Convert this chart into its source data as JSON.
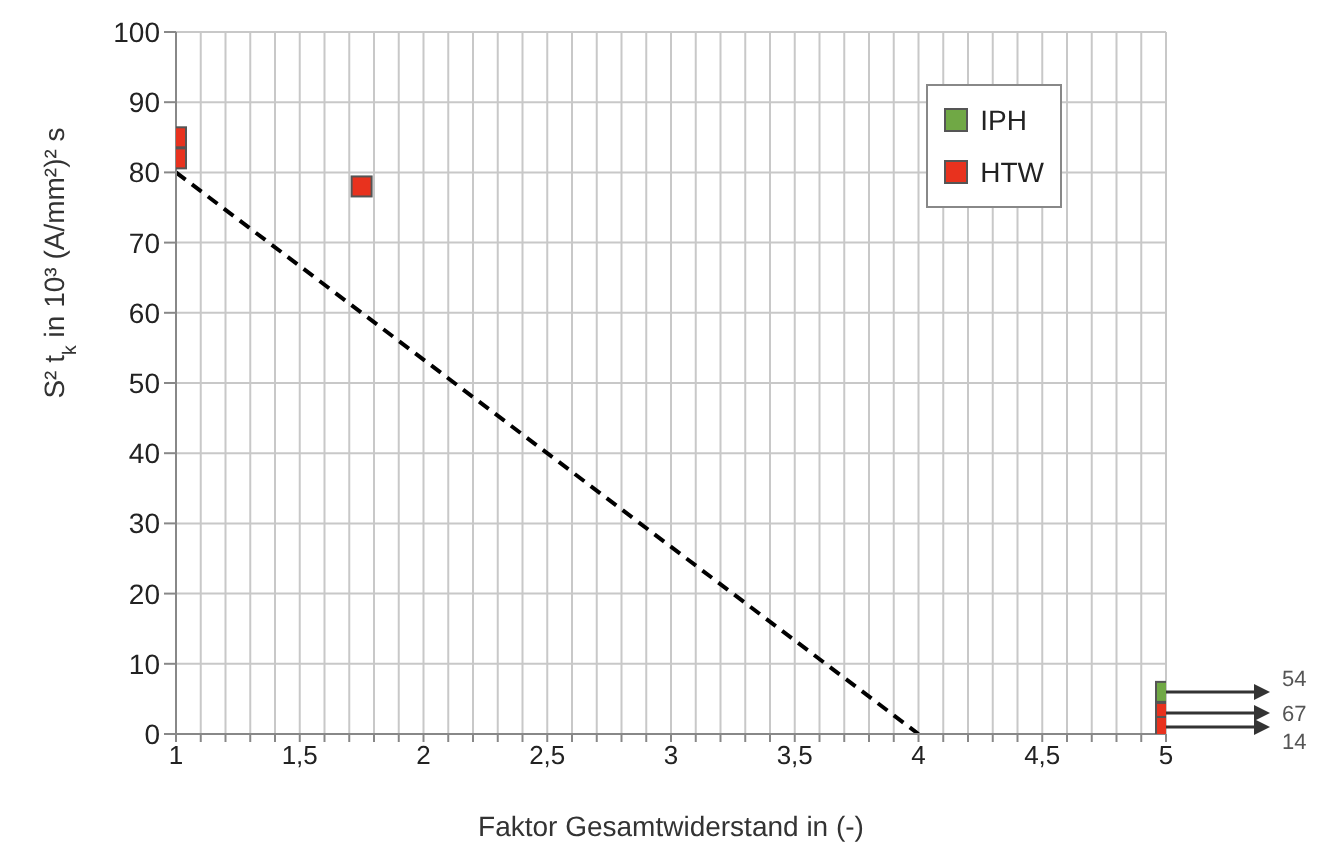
{
  "chart_data": {
    "type": "scatter",
    "xlabel": "Faktor Gesamtwiderstand in (-)",
    "ylabel": "S² t$_{k}$ in 10³ (A/mm²)² s",
    "xlim": [
      1,
      5
    ],
    "xticks": [
      1,
      {
        "value": 1.1,
        "label": null
      },
      {
        "value": 1.2,
        "label": null
      },
      {
        "value": 1.3,
        "label": null
      },
      {
        "value": 1.4,
        "label": null
      },
      {
        "value": 1.5,
        "label": "1,5"
      },
      {
        "value": 1.6,
        "label": null
      },
      {
        "value": 1.7,
        "label": null
      },
      {
        "value": 1.8,
        "label": null
      },
      {
        "value": 1.9,
        "label": null
      },
      2,
      {
        "value": 2.1,
        "label": null
      },
      {
        "value": 2.2,
        "label": null
      },
      {
        "value": 2.3,
        "label": null
      },
      {
        "value": 2.4,
        "label": null
      },
      {
        "value": 2.5,
        "label": "2,5"
      },
      {
        "value": 2.6,
        "label": null
      },
      {
        "value": 2.7,
        "label": null
      },
      {
        "value": 2.8,
        "label": null
      },
      {
        "value": 2.9,
        "label": null
      },
      3,
      {
        "value": 3.1,
        "label": null
      },
      {
        "value": 3.2,
        "label": null
      },
      {
        "value": 3.3,
        "label": null
      },
      {
        "value": 3.4,
        "label": null
      },
      {
        "value": 3.5,
        "label": "3,5"
      },
      {
        "value": 3.6,
        "label": null
      },
      {
        "value": 3.7,
        "label": null
      },
      {
        "value": 3.8,
        "label": null
      },
      {
        "value": 3.9,
        "label": null
      },
      4,
      {
        "value": 4.1,
        "label": null
      },
      {
        "value": 4.2,
        "label": null
      },
      {
        "value": 4.3,
        "label": null
      },
      {
        "value": 4.4,
        "label": null
      },
      {
        "value": 4.5,
        "label": "4,5"
      },
      {
        "value": 4.6,
        "label": null
      },
      {
        "value": 4.7,
        "label": null
      },
      {
        "value": 4.8,
        "label": null
      },
      {
        "value": 4.9,
        "label": null
      },
      5
    ],
    "ylim": [
      0,
      100
    ],
    "yticks": [
      0,
      10,
      20,
      30,
      40,
      50,
      60,
      70,
      80,
      90,
      100
    ],
    "grid": true,
    "legend": "top right",
    "marker": "square",
    "series": [
      {
        "name": "IPH",
        "color": "#70a845",
        "x": [
          5
        ],
        "values": [
          6
        ]
      },
      {
        "name": "HTW",
        "color": "#e8321e",
        "x": [
          1,
          1,
          1.75,
          5,
          5
        ],
        "values": [
          85,
          82,
          78,
          3,
          1
        ]
      },
      {
        "type": "line",
        "color": "#000000",
        "line_style": "dashed",
        "marker": "none",
        "x": [
          1,
          4
        ],
        "values": [
          80,
          0
        ]
      }
    ],
    "annotations": [
      "54",
      "67",
      "14"
    ]
  }
}
